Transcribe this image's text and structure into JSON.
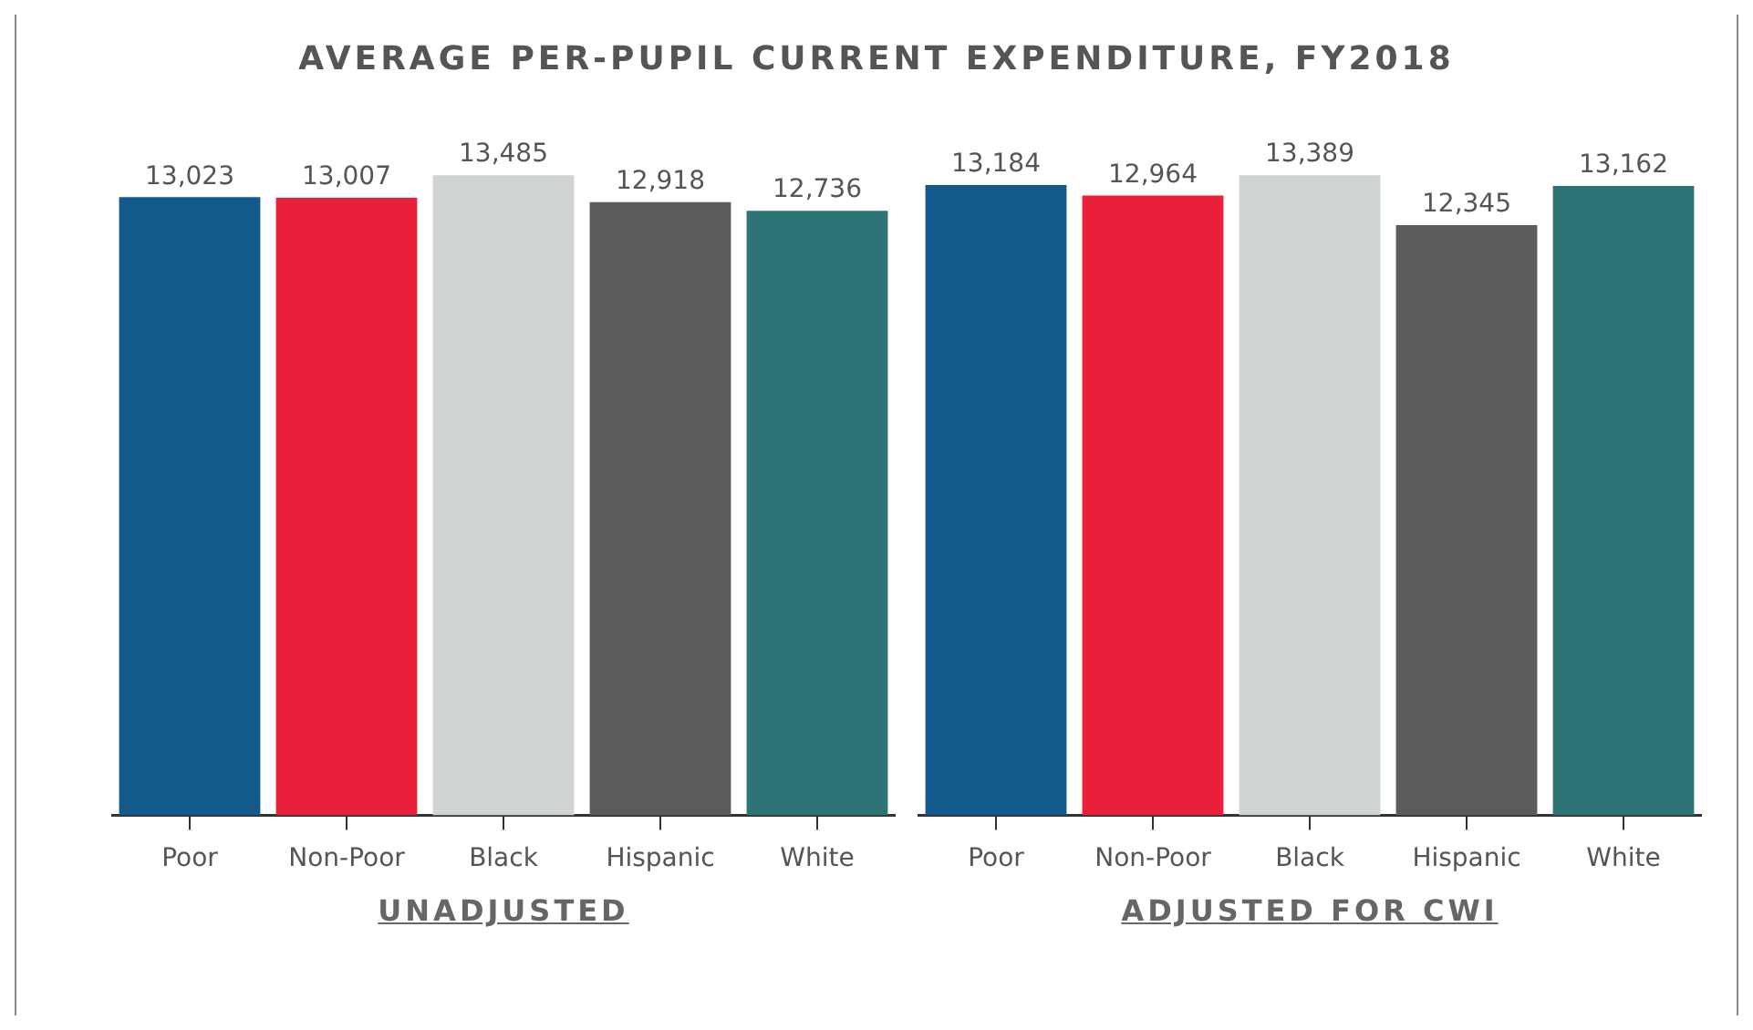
{
  "chart_data": [
    {
      "type": "bar",
      "title": "AVERAGE PER-PUPIL CURRENT EXPENDITURE, FY2018",
      "xlabel": "UNADJUSTED",
      "categories": [
        "Poor",
        "Non-Poor",
        "Black",
        "Hispanic",
        "White"
      ],
      "values": [
        13023,
        13007,
        13485,
        12918,
        12736
      ],
      "value_labels": [
        "13,023",
        "13,007",
        "13,485",
        "12,918",
        "12,736"
      ],
      "colors": [
        "#125a8c",
        "#e8203a",
        "#d0d3d4",
        "#5b5b5d",
        "#2e7375"
      ],
      "grid": false,
      "legend": false
    },
    {
      "type": "bar",
      "xlabel": "ADJUSTED FOR CWI",
      "categories": [
        "Poor",
        "Non-Poor",
        "Black",
        "Hispanic",
        "White"
      ],
      "values": [
        13184,
        12964,
        13389,
        12345,
        13162
      ],
      "value_labels": [
        "13,184",
        "12,964",
        "13,389",
        "12,345",
        "13,162"
      ],
      "colors": [
        "#125a8c",
        "#e8203a",
        "#d0d3d4",
        "#5b5b5d",
        "#2e7375"
      ],
      "grid": false,
      "legend": false
    }
  ]
}
